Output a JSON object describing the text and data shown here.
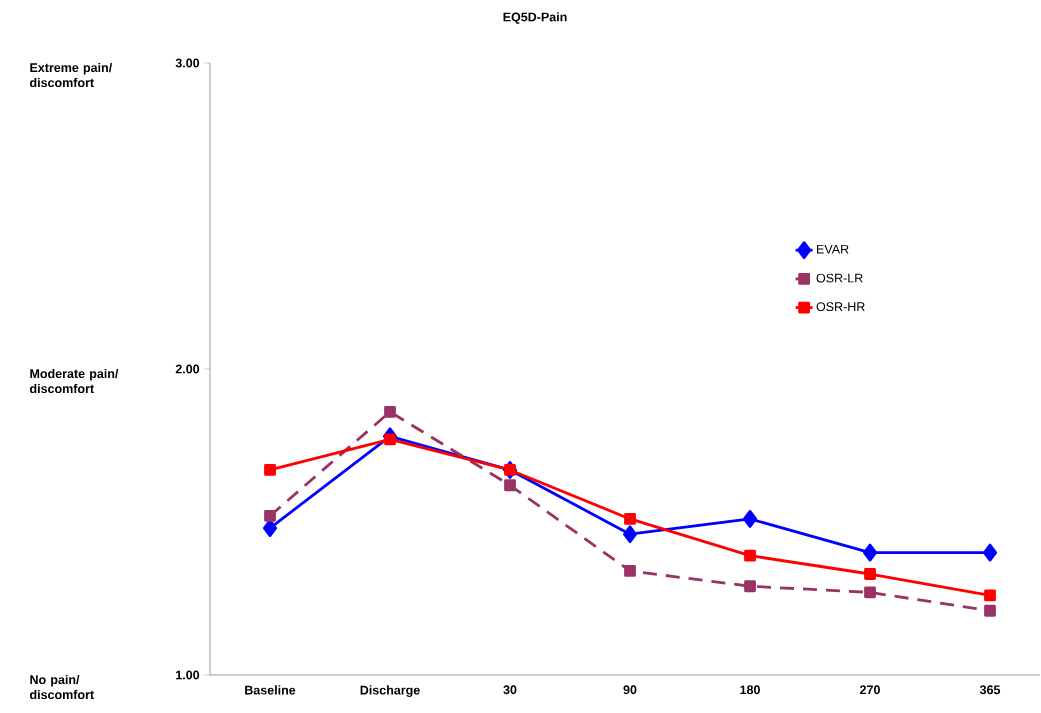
{
  "chart_data": {
    "type": "line",
    "title": "EQ5D-Pain",
    "categories": [
      "Baseline",
      "Discharge",
      "30",
      "90",
      "180",
      "270",
      "365"
    ],
    "series": [
      {
        "name": "EVAR",
        "color": "#0000ff",
        "marker": "diamond",
        "line_style": "solid",
        "values": [
          1.48,
          1.78,
          1.67,
          1.46,
          1.51,
          1.4,
          1.4
        ]
      },
      {
        "name": "OSR-LR",
        "color": "#993366",
        "marker": "square",
        "line_style": "dashed",
        "values": [
          1.52,
          1.86,
          1.62,
          1.34,
          1.29,
          1.27,
          1.21
        ]
      },
      {
        "name": "OSR-HR",
        "color": "#ff0000",
        "marker": "square",
        "line_style": "solid",
        "values": [
          1.67,
          1.77,
          1.67,
          1.51,
          1.39,
          1.33,
          1.26
        ]
      }
    ],
    "ylim": [
      1,
      3
    ],
    "yticks": [
      {
        "value": 1,
        "label": "1.00"
      },
      {
        "value": 2,
        "label": "2.00"
      },
      {
        "value": 3,
        "label": "3.00"
      }
    ],
    "annotations": [
      "No pain/ discomfort",
      "Moderate pain/ discomfort",
      "Extreme pain/ discomfort"
    ],
    "legend": "right",
    "grid": false
  }
}
